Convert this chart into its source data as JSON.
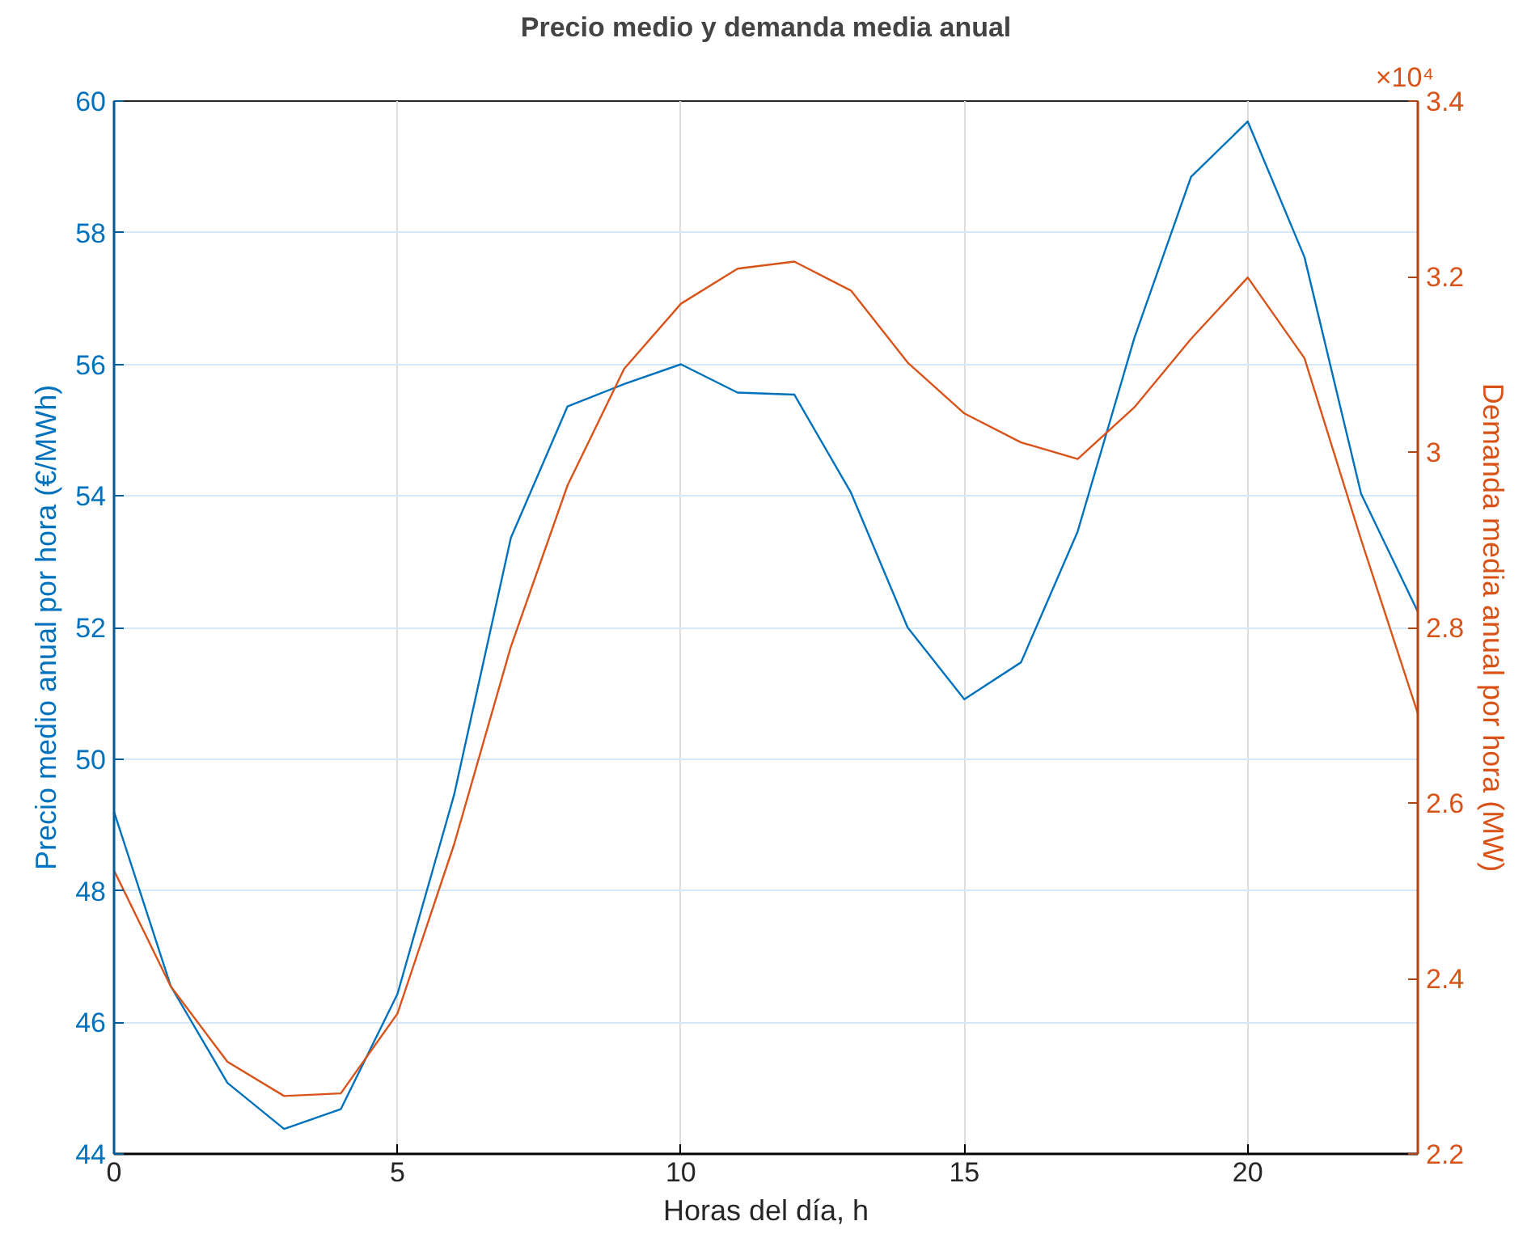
{
  "chart_data": {
    "type": "line",
    "title": "Precio medio y demanda media anual",
    "xlabel": "Horas del día, h",
    "ylabel": "Precio medio anual por hora (€/MWh)",
    "y2label": "Demanda media anual por hora (MW)",
    "x": [
      0,
      1,
      2,
      3,
      4,
      5,
      6,
      7,
      8,
      9,
      10,
      11,
      12,
      13,
      14,
      15,
      16,
      17,
      18,
      19,
      20,
      21,
      22,
      23
    ],
    "series": [
      {
        "color": "#0072bd",
        "values": [
          49.2,
          46.55,
          45.08,
          44.38,
          44.68,
          46.43,
          49.46,
          53.36,
          55.36,
          55.7,
          56.0,
          55.57,
          55.54,
          54.05,
          52.0,
          50.91,
          51.47,
          53.46,
          56.4,
          58.85,
          59.69,
          57.63,
          54.03,
          52.24
        ]
      },
      {
        "color": "#d95319",
        "axis": "y2",
        "values": [
          2.523,
          2.391,
          2.305,
          2.266,
          2.269,
          2.36,
          2.553,
          2.778,
          2.962,
          3.095,
          3.169,
          3.209,
          3.217,
          3.184,
          3.102,
          3.044,
          3.011,
          2.992,
          3.051,
          3.129,
          3.199,
          3.107,
          2.9,
          2.702
        ]
      }
    ],
    "xlim": [
      0,
      23
    ],
    "xticks": [
      0,
      5,
      10,
      15,
      20
    ],
    "ylim": [
      44,
      60
    ],
    "yticks": [
      44,
      46,
      48,
      50,
      52,
      54,
      56,
      58,
      60
    ],
    "y2lim": [
      2.2,
      3.4
    ],
    "y2ticks": [
      2.2,
      2.4,
      2.6,
      2.8,
      3,
      3.2,
      3.4
    ],
    "annotations": [
      "×10⁴"
    ],
    "grid": true,
    "marker": "none",
    "line_style": "solid"
  }
}
